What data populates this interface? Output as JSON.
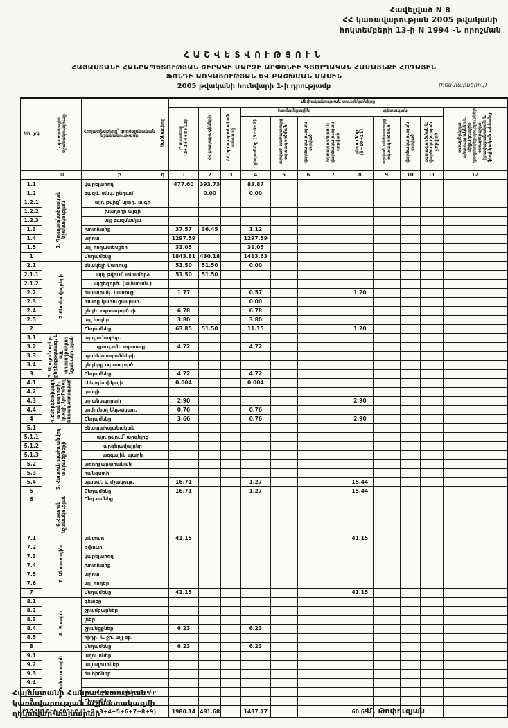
{
  "appendix": {
    "line1": "Հավելված N 8",
    "line2": "ՀՀ կառավարության 2005 թվականի",
    "line3": "հոկտեմբերի 13-ի N 1994 -Ն որոշման"
  },
  "title": {
    "heading": "ՀԱՇՎԵՏՎՈՒԹՅՈՒՆ",
    "line1": "ՀԱՅԱՍՏԱՆԻ ՀԱՆՐԱՊԵՏՈՒԹՅԱՆ ՇԻՐԱԿԻ ՄԱՐԶԻ ԱՐՓԵՆԻԻ ԳՅՈՒՂԱԿԱՆ ՀԱՄԱՅՆՔԻ ՀՈՂԱՅԻՆ",
    "line2": "ՖՈՆԴԻ ԱՌԿԱՅՈՒԹՅԱՆ ԵՎ ԲԱՇԽՄԱՆ ՄԱՍԻՆ",
    "line3": "2005 թվականի հունվարի 1-ի դրությամբ",
    "units": "(հեկտարներով)"
  },
  "table": {
    "head": {
      "nn": "NN ը/կ",
      "purpose": "Նպատակային նշանակությունը",
      "landtype": "Հողատեսքերը՝ գործառնական նշանակությամբ",
      "code": "Ծածկագիրը",
      "band_top": "Սեփականության սուբյեկտները",
      "band_community": "համայնքային",
      "band_state": "պետական",
      "c1": "Ընդամենը (2+3+4+8+12)",
      "c2": "ՀՀ քաղաքացիների",
      "c3": "ՀՀ իրավաբանական անձանց",
      "c4": "ընդամենը (5+6+7)",
      "c5": "տրված անհատույց օգտագործման",
      "c6": "վարձակալության տրված",
      "c7": "օգտագործման և վարձակալության չտրված",
      "c8": "ընդամենը (9+10+11)",
      "c9": "տրված անհատույց օգտագործման",
      "c10": "վարձակալության տրված",
      "c11": "օգտագործման և վարձակալության չտրված",
      "c12": "օտարերկրյա պետությունների, միջազգային կազմակերպությունների, օտարերկրյա իրավաբանական և ֆիզիկական անձանց",
      "letters": [
        "",
        "ա",
        "բ",
        "գ",
        "1",
        "2",
        "3",
        "4",
        "5",
        "6",
        "7",
        "8",
        "9",
        "10",
        "11",
        "12"
      ]
    },
    "sections": [
      {
        "label": "1. Գյուղատնտեսական նշանակության",
        "rows": [
          {
            "code": "1.1",
            "name": "վարելահող",
            "v": {
              "1": "477.60",
              "2": "393.73",
              "4": "83.87"
            }
          },
          {
            "code": "1.2",
            "name": "բազմ. տնկ. ընդամ.",
            "v": {
              "2": "0.00",
              "4": "0.00"
            }
          },
          {
            "code": "1.2.1",
            "name": "այդ թվից՝ պտղ. այգի",
            "indent": 1
          },
          {
            "code": "1.2.2",
            "name": "խաղողի այգի",
            "indent": 1
          },
          {
            "code": "1.2.3",
            "name": "այլ բազմամյա",
            "indent": 1
          },
          {
            "code": "1.3",
            "name": "խոտհարք",
            "v": {
              "1": "37.57",
              "2": "36.45",
              "4": "1.12"
            }
          },
          {
            "code": "1.4",
            "name": "արոտ",
            "v": {
              "1": "1297.59",
              "4": "1297.59"
            }
          },
          {
            "code": "1.5",
            "name": "այլ հողատեսքեր",
            "v": {
              "1": "31.05",
              "4": "31.05"
            }
          },
          {
            "code": "1",
            "name": "Ընդամենը",
            "total": true,
            "v": {
              "1": "1843.81",
              "2": "430.18",
              "4": "1413.63"
            }
          }
        ]
      },
      {
        "label": "2.Բնակավայրերի",
        "rows": [
          {
            "code": "2.1",
            "name": "բնակելի կառուց.",
            "v": {
              "1": "51.50",
              "2": "51.50",
              "4": "0.00"
            }
          },
          {
            "code": "2.1.1",
            "name": "այդ թվում՝ տնամերձ",
            "indent": 1,
            "v": {
              "1": "51.50",
              "2": "51.50"
            }
          },
          {
            "code": "2.1.2",
            "name": "այգեգործ. (ամառան.)",
            "indent": 1
          },
          {
            "code": "2.2",
            "name": "հասարակ. կառուց.",
            "v": {
              "1": "1.77",
              "4": "0.57",
              "8": "1.20"
            }
          },
          {
            "code": "2.3",
            "name": "խառը կառուցապատ.",
            "v": {
              "4": "0.00"
            }
          },
          {
            "code": "2.4",
            "name": "ընդհ. օգտագործ.-ի",
            "v": {
              "1": "6.78",
              "4": "6.78"
            }
          },
          {
            "code": "2.5",
            "name": "այլ հողեր",
            "v": {
              "1": "3.80",
              "4": "3.80"
            }
          },
          {
            "code": "2",
            "name": "Ընդամենը",
            "total": true,
            "v": {
              "1": "63.85",
              "2": "51.50",
              "4": "11.15",
              "8": "1.20"
            }
          }
        ]
      },
      {
        "label": "3. Արդյունաբեր., ընդերքօգտագ. և այլ արտադրական նշանակության",
        "rows": [
          {
            "code": "3.1",
            "name": "արդյունաբեր."
          },
          {
            "code": "3.2",
            "name": "գյուղ.տն. արտադր.",
            "indent": 1,
            "v": {
              "1": "4.72",
              "4": "4.72"
            }
          },
          {
            "code": "3.3",
            "name": "պահեստարանների"
          },
          {
            "code": "3.4",
            "name": "ընդերք օգտագործ."
          },
          {
            "code": "3",
            "name": "Ընդամենը",
            "total": true,
            "v": {
              "1": "4.72",
              "4": "4.72"
            }
          }
        ]
      },
      {
        "label": "4.Էներգետիկայի, տրանսպորտի, կապի, կոմունալ ենթակառուցվածքների",
        "rows": [
          {
            "code": "4.1",
            "name": "էներգետիկայի",
            "v": {
              "1": "0.004",
              "4": "0.004"
            }
          },
          {
            "code": "4.2",
            "name": "կապի"
          },
          {
            "code": "4.3",
            "name": "տրանսպորտի",
            "v": {
              "1": "2.90",
              "8": "2.90"
            }
          },
          {
            "code": "4.4",
            "name": "կոմունալ ենթակառ.",
            "v": {
              "1": "0.76",
              "4": "0.76"
            }
          },
          {
            "code": "4",
            "name": "Ընդամենը",
            "total": true,
            "v": {
              "1": "3.66",
              "4": "0.76",
              "8": "2.90"
            }
          }
        ]
      },
      {
        "label": "5. Հատուկ պահպանվող տարածքների",
        "rows": [
          {
            "code": "5.1",
            "name": "բնապահպանական"
          },
          {
            "code": "5.1.1",
            "name": "այդ թվում՝ արգելոց",
            "indent": 1
          },
          {
            "code": "5.1.2",
            "name": "արգելավայրեր",
            "indent": 1
          },
          {
            "code": "5.1.3",
            "name": "ազգային պարկ",
            "indent": 1
          },
          {
            "code": "5.2",
            "name": "առողջարարական"
          },
          {
            "code": "5.3",
            "name": "հանգստի"
          },
          {
            "code": "5.4",
            "name": "պատմ. և մշակութ.",
            "v": {
              "1": "16.71",
              "4": "1.27",
              "8": "15.44"
            }
          },
          {
            "code": "5",
            "name": "Ընդամենը",
            "total": true,
            "v": {
              "1": "16.71",
              "4": "1.27",
              "8": "15.44"
            }
          }
        ]
      },
      {
        "label": "6.Հատուկ նշանակության",
        "tall": true,
        "rows": [
          {
            "code": "6",
            "name": "Ընդ.ամենը",
            "total": true
          }
        ]
      },
      {
        "label": "7. Անտառային",
        "rows": [
          {
            "code": "7.1",
            "name": "անտառ",
            "v": {
              "1": "41.15",
              "8": "41.15"
            }
          },
          {
            "code": "7.2",
            "name": "թփուտ"
          },
          {
            "code": "7.3",
            "name": "վարելահող"
          },
          {
            "code": "7.4",
            "name": "խոտհարք"
          },
          {
            "code": "7.5",
            "name": "արոտ"
          },
          {
            "code": "7.6",
            "name": "այլ հողեր"
          },
          {
            "code": "7",
            "name": "Ընդամենը",
            "total": true,
            "v": {
              "1": "41.15",
              "8": "41.15"
            }
          }
        ]
      },
      {
        "label": "8. Ջրային",
        "rows": [
          {
            "code": "8.1",
            "name": "գետեր"
          },
          {
            "code": "8.2",
            "name": "ջրամբարներ"
          },
          {
            "code": "8.3",
            "name": "լճեր"
          },
          {
            "code": "8.4",
            "name": "ջրանցքներ",
            "v": {
              "1": "6.23",
              "4": "6.23"
            }
          },
          {
            "code": "8.5",
            "name": "հիդր. և ջր. այլ օբ."
          },
          {
            "code": "8",
            "name": "Ընդամենը",
            "total": true,
            "v": {
              "1": "6.23",
              "4": "6.23"
            }
          }
        ]
      },
      {
        "label": "9. Պահուստային",
        "rows": [
          {
            "code": "9.1",
            "name": "աղուտներ"
          },
          {
            "code": "9.2",
            "name": "ավազուտներ"
          },
          {
            "code": "9.3",
            "name": "ճահիճներ"
          },
          {
            "code": "9.4",
            "name": ""
          },
          {
            "code": "9.5",
            "name": "այլ անօգտագործվող հողեր"
          },
          {
            "code": "9",
            "name": "Ընդամենը",
            "total": true
          }
        ]
      }
    ],
    "footer": {
      "label": "ԸՆԴՀԱՆՈՒՐ ՀՈՂԵՐ (1+2+3+4+5+6+7+8+9)",
      "v": {
        "1": "1980.14",
        "2": "481.68",
        "4": "1437.77",
        "8": "60.69"
      }
    }
  },
  "signature": {
    "line1": "Հայաստանի Հանրապետության",
    "line2": "կառավարության աշխատակազմի",
    "line3": "ղեկավար-նախարար",
    "name": "Մ. Թոփուզյան"
  }
}
